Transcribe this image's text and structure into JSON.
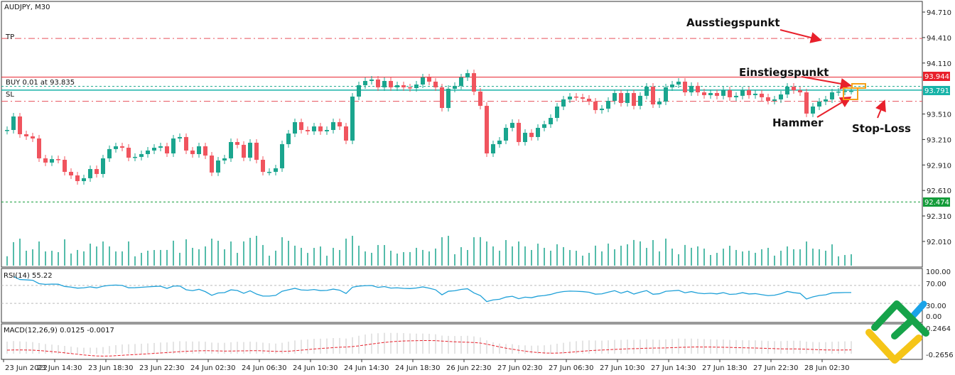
{
  "chart_data": {
    "type": "candlestick",
    "title": "AUDJPY, M30",
    "ylim": [
      91.85,
      94.8
    ],
    "y_ticks": [
      "94.710",
      "94.410",
      "94.110",
      "93.510",
      "93.210",
      "92.910",
      "92.610",
      "92.310",
      "92.010"
    ],
    "x_tick_labels": [
      "23 Jun 2022",
      "23 Jun 14:30",
      "23 Jun 18:30",
      "23 Jun 22:30",
      "24 Jun 02:30",
      "24 Jun 06:30",
      "24 Jun 10:30",
      "24 Jun 14:30",
      "24 Jun 18:30",
      "26 Jun 22:30",
      "27 Jun 02:30",
      "27 Jun 06:30",
      "27 Jun 10:30",
      "27 Jun 14:30",
      "27 Jun 18:30",
      "27 Jun 22:30",
      "28 Jun 02:30"
    ],
    "closes": [
      93.322,
      93.481,
      93.272,
      93.247,
      93.222,
      92.988,
      92.938,
      92.979,
      92.971,
      92.829,
      92.787,
      92.72,
      92.754,
      92.862,
      92.804,
      92.988,
      93.097,
      93.13,
      93.113,
      92.996,
      93.005,
      93.038,
      93.08,
      93.113,
      93.13,
      93.046,
      93.222,
      93.239,
      93.08,
      93.038,
      93.13,
      93.021,
      92.821,
      92.963,
      92.988,
      93.18,
      93.147,
      92.996,
      93.172,
      92.971,
      92.829,
      92.829,
      92.871,
      93.155,
      93.28,
      93.414,
      93.322,
      93.306,
      93.364,
      93.306,
      93.322,
      93.414,
      93.364,
      93.197,
      93.715,
      93.849,
      93.899,
      93.916,
      93.824,
      93.899,
      93.824,
      93.849,
      93.824,
      93.815,
      93.857,
      93.941,
      93.891,
      93.824,
      93.581,
      93.807,
      93.841,
      93.941,
      93.991,
      93.774,
      93.606,
      93.046,
      93.155,
      93.197,
      93.347,
      93.406,
      93.18,
      93.289,
      93.239,
      93.347,
      93.389,
      93.464,
      93.598,
      93.682,
      93.715,
      93.707,
      93.69,
      93.657,
      93.556,
      93.573,
      93.665,
      93.757,
      93.64,
      93.757,
      93.606,
      93.724,
      93.832,
      93.623,
      93.657,
      93.824,
      93.857,
      93.891,
      93.765,
      93.841,
      93.765,
      93.732,
      93.757,
      93.724,
      93.79,
      93.707,
      93.724,
      93.79,
      93.732,
      93.749,
      93.707,
      93.665,
      93.682,
      93.74,
      93.832,
      93.79,
      93.765,
      93.515,
      93.598,
      93.657,
      93.682,
      93.765,
      93.774,
      93.782,
      93.782
    ],
    "levels": {
      "tp": {
        "label": "TP",
        "price": 94.4,
        "color": "#e8505b"
      },
      "ask": {
        "price": 93.944,
        "tag": "93.944",
        "color": "#e8202b"
      },
      "buy": {
        "label": "BUY 0.01 at 93.835",
        "price": 93.835,
        "color": "#17a589"
      },
      "bid": {
        "price": 93.791,
        "tag": "93.791",
        "color": "#17b3a8"
      },
      "sl": {
        "label": "SL",
        "price": 93.66,
        "color": "#e8505b"
      },
      "low": {
        "price": 92.474,
        "tag": "92.474",
        "color": "#149c3a"
      }
    },
    "colors": {
      "up": "#1aa58e",
      "down": "#f0545e",
      "volume": "#1aa58e",
      "rsi": "#1ea0d8",
      "macd_signal": "#e8202b",
      "macd_hist": "#c8c8c8"
    },
    "annotations": {
      "exit": "Ausstiegspunkt",
      "entry": "Einstiegspunkt",
      "hammer": "Hammer",
      "stop_loss": "Stop-Loss"
    },
    "rsi": {
      "label": "RSI(14) 55.22",
      "ticks": [
        "100.00",
        "70.00",
        "30.00",
        "0.00"
      ]
    },
    "macd": {
      "label": "MACD(12,26,9) 0.0125 -0.0017",
      "ticks": [
        "0.2464",
        "-0.2656"
      ]
    }
  }
}
